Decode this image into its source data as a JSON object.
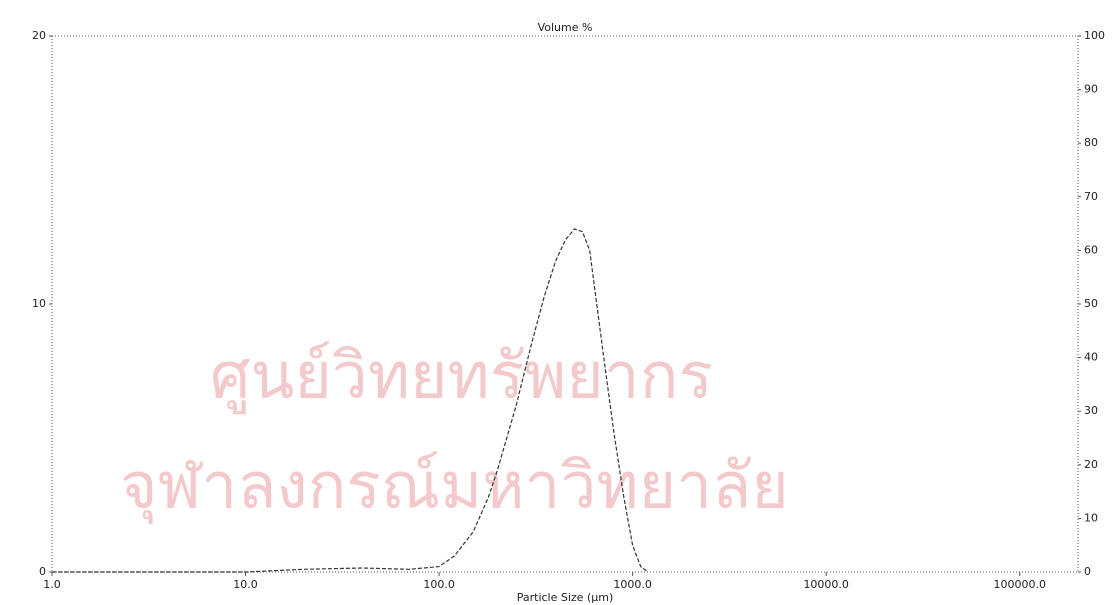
{
  "chart_data": {
    "type": "line",
    "title": "Volume %",
    "xlabel": "Particle Size (µm)",
    "watermark": [
      "ศูนย์วิทยทรัพยากร",
      "จุฬาลงกรณ์มหาวิทยาลัย"
    ],
    "xscale": "log",
    "xlim": [
      1,
      200000
    ],
    "xticks": [
      {
        "value": 1,
        "label": "1.0"
      },
      {
        "value": 10,
        "label": "10.0"
      },
      {
        "value": 100,
        "label": "100.0"
      },
      {
        "value": 1000,
        "label": "1000.0"
      },
      {
        "value": 10000,
        "label": "10000.0"
      },
      {
        "value": 100000,
        "label": "100000.0"
      }
    ],
    "ylim": [
      0,
      20
    ],
    "yticks": [
      0,
      10,
      20
    ],
    "y2lim": [
      0,
      100
    ],
    "y2ticks": [
      0,
      10,
      20,
      30,
      40,
      50,
      60,
      70,
      80,
      90,
      100
    ],
    "x": [
      1,
      10,
      20,
      40,
      70,
      100,
      120,
      150,
      180,
      200,
      250,
      300,
      350,
      400,
      450,
      500,
      550,
      600,
      700,
      800,
      900,
      1000,
      1100,
      1200
    ],
    "series": [
      {
        "name": "Volume %",
        "color": "#333333",
        "values": [
          0,
          0,
          0.1,
          0.15,
          0.1,
          0.2,
          0.6,
          1.5,
          2.8,
          3.8,
          6.2,
          8.5,
          10.3,
          11.6,
          12.4,
          12.8,
          12.7,
          12.0,
          8.3,
          5.2,
          2.8,
          1.0,
          0.2,
          0
        ]
      }
    ]
  }
}
